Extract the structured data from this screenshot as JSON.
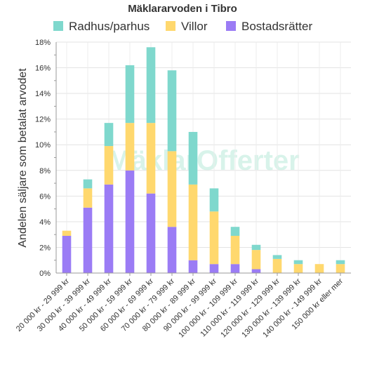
{
  "chart_data": {
    "type": "bar",
    "stacked": true,
    "title": "Mäklararvoden i Tibro",
    "xlabel": "",
    "ylabel": "Andelen säljare som betalat arvodet",
    "ylim": [
      0,
      18
    ],
    "yticks": [
      "0%",
      "2%",
      "4%",
      "6%",
      "8%",
      "10%",
      "12%",
      "14%",
      "16%",
      "18%"
    ],
    "grid": true,
    "legend": "top",
    "watermark": "MäklarOfferter",
    "categories": [
      "20 000 kr - 29 999 kr",
      "30 000 kr - 39 999 kr",
      "40 000 kr - 49 999 kr",
      "50 000 kr - 59 999 kr",
      "60 000 kr - 69 999 kr",
      "70 000 kr - 79 999 kr",
      "80 000 kr - 89 999 kr",
      "90 000 kr - 99 999 kr",
      "100 000 kr - 109 999 kr",
      "110 000 kr - 119 999 kr",
      "120 000 kr - 129 999 kr",
      "130 000 kr - 139 999 kr",
      "140 000 kr - 149 999 kr",
      "150 000 kr eller mer"
    ],
    "series": [
      {
        "name": "Bostadsrätter",
        "color": "#9b7cf5",
        "values": [
          2.9,
          5.1,
          6.9,
          8.0,
          6.2,
          3.6,
          1.0,
          0.7,
          0.7,
          0.3,
          0,
          0,
          0,
          0
        ]
      },
      {
        "name": "Villor",
        "color": "#ffd86e",
        "values": [
          0.4,
          1.5,
          3.0,
          3.7,
          5.5,
          5.9,
          5.9,
          4.1,
          2.2,
          1.5,
          1.1,
          0.7,
          0.7,
          0.7
        ]
      },
      {
        "name": "Radhus/parhus",
        "color": "#7fd8cd",
        "values": [
          0,
          0.7,
          1.8,
          4.5,
          5.9,
          6.3,
          4.1,
          1.8,
          0.7,
          0.4,
          0.3,
          0.3,
          0,
          0.3
        ]
      }
    ],
    "legend_order": [
      "Radhus/parhus",
      "Villor",
      "Bostadsrätter"
    ]
  }
}
